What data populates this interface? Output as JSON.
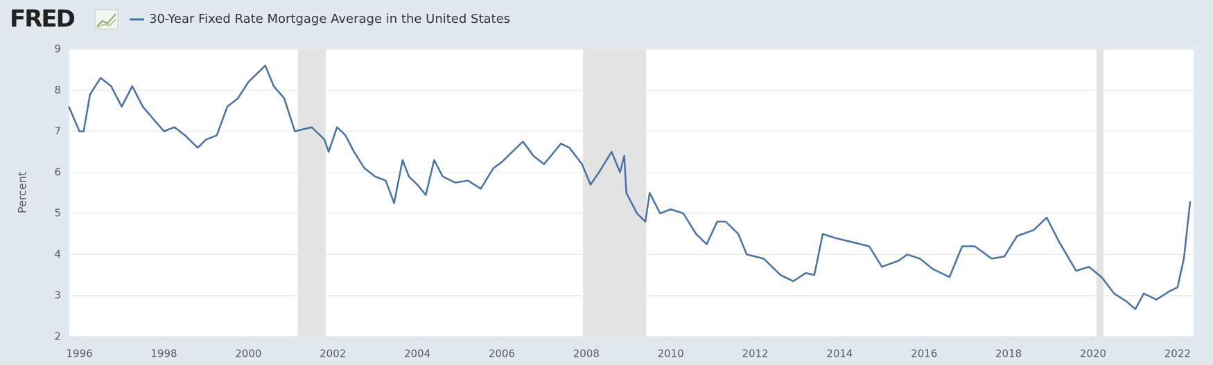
{
  "chart_data": {
    "type": "line",
    "logo": "FRED",
    "y_label": "Percent",
    "x": [
      1995.75,
      1996.0,
      1996.1,
      1996.25,
      1996.5,
      1996.75,
      1997.0,
      1997.25,
      1997.5,
      1997.75,
      1998.0,
      1998.25,
      1998.5,
      1998.8,
      1999.0,
      1999.25,
      1999.5,
      1999.75,
      2000.0,
      2000.4,
      2000.6,
      2000.85,
      2001.1,
      2001.5,
      2001.8,
      2001.9,
      2002.1,
      2002.3,
      2002.5,
      2002.75,
      2003.0,
      2003.25,
      2003.45,
      2003.65,
      2003.8,
      2004.0,
      2004.2,
      2004.4,
      2004.6,
      2004.9,
      2005.2,
      2005.5,
      2005.8,
      2006.0,
      2006.5,
      2006.75,
      2007.0,
      2007.4,
      2007.6,
      2007.9,
      2008.1,
      2008.3,
      2008.6,
      2008.8,
      2008.9,
      2008.95,
      2009.2,
      2009.4,
      2009.5,
      2009.75,
      2010.0,
      2010.3,
      2010.6,
      2010.85,
      2011.1,
      2011.3,
      2011.6,
      2011.8,
      2012.2,
      2012.6,
      2012.9,
      2013.2,
      2013.4,
      2013.6,
      2013.9,
      2014.3,
      2014.7,
      2015.0,
      2015.4,
      2015.6,
      2015.9,
      2016.2,
      2016.6,
      2016.9,
      2017.2,
      2017.6,
      2017.9,
      2018.2,
      2018.6,
      2018.9,
      2019.2,
      2019.6,
      2019.9,
      2020.2,
      2020.5,
      2020.8,
      2021.0,
      2021.2,
      2021.5,
      2021.8,
      2022.0,
      2022.15,
      2022.3
    ],
    "series": [
      {
        "name": "30-Year Fixed Rate Mortgage Average in the United States",
        "color": "#4572a7",
        "values": [
          7.6,
          7.0,
          7.0,
          7.9,
          8.3,
          8.1,
          7.6,
          8.1,
          7.6,
          7.3,
          7.0,
          7.1,
          6.9,
          6.6,
          6.8,
          6.9,
          7.6,
          7.8,
          8.2,
          8.6,
          8.1,
          7.8,
          7.0,
          7.1,
          6.8,
          6.5,
          7.1,
          6.9,
          6.5,
          6.1,
          5.9,
          5.8,
          5.25,
          6.3,
          5.9,
          5.7,
          5.45,
          6.3,
          5.9,
          5.75,
          5.8,
          5.6,
          6.1,
          6.25,
          6.75,
          6.4,
          6.2,
          6.7,
          6.6,
          6.2,
          5.7,
          6.0,
          6.5,
          6.0,
          6.4,
          5.5,
          5.0,
          4.8,
          5.5,
          5.0,
          5.1,
          5.0,
          4.5,
          4.25,
          4.8,
          4.8,
          4.5,
          4.0,
          3.9,
          3.5,
          3.35,
          3.55,
          3.5,
          4.5,
          4.4,
          4.3,
          4.2,
          3.7,
          3.85,
          4.0,
          3.9,
          3.65,
          3.45,
          4.2,
          4.2,
          3.9,
          3.95,
          4.45,
          4.6,
          4.9,
          4.3,
          3.6,
          3.7,
          3.45,
          3.05,
          2.85,
          2.67,
          3.05,
          2.9,
          3.1,
          3.2,
          3.9,
          5.3
        ]
      }
    ],
    "recessions": [
      [
        2001.17,
        2001.83
      ],
      [
        2007.92,
        2009.42
      ],
      [
        2020.08,
        2020.25
      ]
    ],
    "xlim": [
      1995.76,
      2022.38
    ],
    "xticks": [
      1996,
      1998,
      2000,
      2002,
      2004,
      2006,
      2008,
      2010,
      2012,
      2014,
      2016,
      2018,
      2020,
      2022
    ],
    "ylim": [
      2,
      9
    ],
    "yticks": [
      2,
      3,
      4,
      5,
      6,
      7,
      8,
      9
    ],
    "grid": true
  }
}
